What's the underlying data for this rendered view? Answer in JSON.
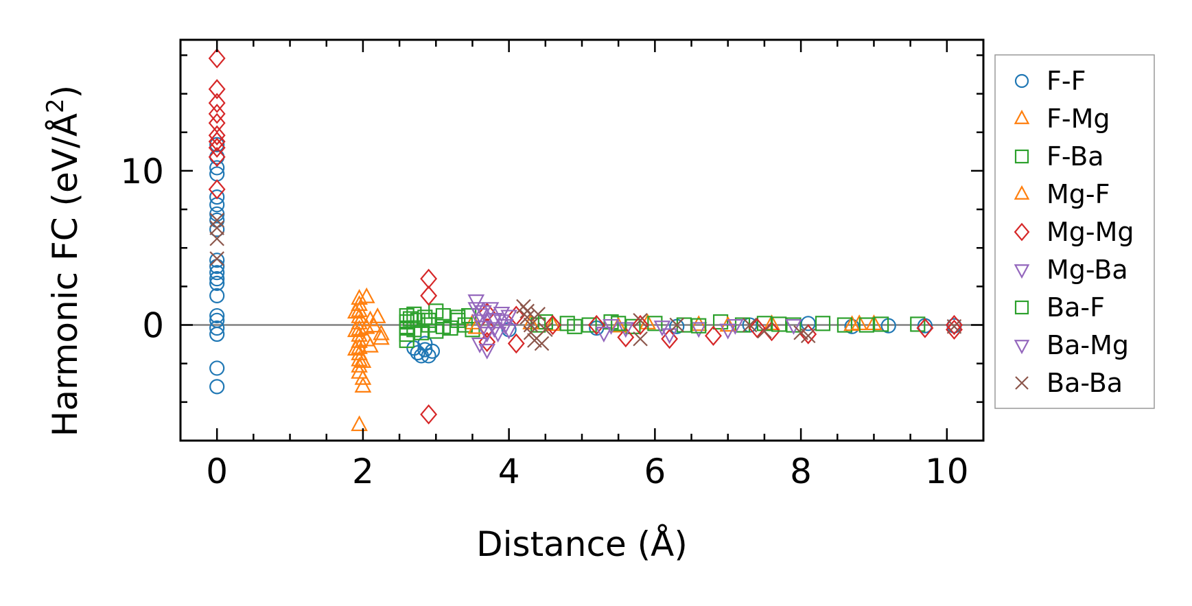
{
  "chart_data": {
    "type": "scatter",
    "title": "",
    "xlabel": "Distance (Å)",
    "ylabel_main": "Harmonic FC (eV/Å",
    "ylabel_sup": "2",
    "ylabel_close": ")",
    "xlim": [
      -0.5,
      10.5
    ],
    "ylim": [
      -7.5,
      18.5
    ],
    "xticks": [
      0,
      2,
      4,
      6,
      8,
      10
    ],
    "xtick_labels": [
      "0",
      "2",
      "4",
      "6",
      "8",
      "10"
    ],
    "yticks": [
      0,
      10
    ],
    "ytick_labels": [
      "0",
      "10"
    ],
    "reference_line_y": 0,
    "legend_position": "right-outside",
    "grid": false,
    "series": [
      {
        "name": "F-F",
        "marker": "circle",
        "color": "#1f77b4",
        "points": [
          [
            0,
            11.7
          ],
          [
            0,
            10.9
          ],
          [
            0,
            10.2
          ],
          [
            0,
            9.8
          ],
          [
            0,
            8.3
          ],
          [
            0,
            7.8
          ],
          [
            0,
            7.2
          ],
          [
            0,
            6.8
          ],
          [
            0,
            6.2
          ],
          [
            0,
            4.2
          ],
          [
            0,
            3.8
          ],
          [
            0,
            3.4
          ],
          [
            0,
            3.0
          ],
          [
            0,
            2.7
          ],
          [
            0,
            1.9
          ],
          [
            0,
            0.6
          ],
          [
            0,
            0.3
          ],
          [
            0,
            -0.2
          ],
          [
            0,
            -0.6
          ],
          [
            0,
            -2.8
          ],
          [
            0,
            -4.0
          ],
          [
            2.75,
            -1.8
          ],
          [
            2.8,
            -2.0
          ],
          [
            2.85,
            -1.6
          ],
          [
            2.9,
            -2.0
          ],
          [
            2.95,
            -1.7
          ],
          [
            2.7,
            -1.5
          ],
          [
            2.85,
            -1.2
          ],
          [
            4.0,
            -0.3
          ],
          [
            5.2,
            -0.2
          ],
          [
            6.3,
            -0.1
          ],
          [
            7.3,
            0.0
          ],
          [
            8.1,
            0.1
          ],
          [
            8.7,
            -0.1
          ],
          [
            9.2,
            -0.05
          ],
          [
            9.7,
            -0.05
          ],
          [
            10.1,
            -0.05
          ]
        ]
      },
      {
        "name": "F-Mg",
        "marker": "triangle-up",
        "color": "#ff7f0e",
        "points": [
          [
            1.95,
            1.7
          ],
          [
            1.95,
            1.3
          ],
          [
            1.95,
            0.9
          ],
          [
            1.95,
            0.5
          ],
          [
            1.95,
            0.1
          ],
          [
            1.95,
            -0.3
          ],
          [
            1.95,
            -0.7
          ],
          [
            1.95,
            -1.1
          ],
          [
            1.95,
            -1.5
          ],
          [
            1.95,
            -1.9
          ],
          [
            1.95,
            -2.3
          ],
          [
            1.95,
            -2.7
          ],
          [
            1.95,
            -3.1
          ],
          [
            1.95,
            -6.5
          ],
          [
            2.0,
            -4.0
          ],
          [
            2.0,
            -3.5
          ],
          [
            2.05,
            1.8
          ],
          [
            2.05,
            -0.2
          ],
          [
            2.05,
            -1.0
          ],
          [
            2.1,
            0.3
          ],
          [
            2.1,
            -1.4
          ],
          [
            2.2,
            0.5
          ],
          [
            2.25,
            -0.6
          ],
          [
            2.25,
            -0.9
          ],
          [
            3.5,
            0.1
          ],
          [
            4.6,
            0.0
          ],
          [
            5.9,
            0.1
          ],
          [
            6.6,
            0.0
          ],
          [
            7.6,
            0.05
          ],
          [
            8.7,
            0.0
          ],
          [
            9.0,
            0.05
          ]
        ]
      },
      {
        "name": "F-Ba",
        "marker": "square",
        "color": "#2ca02c",
        "points": [
          [
            2.6,
            0.6
          ],
          [
            2.6,
            0.2
          ],
          [
            2.6,
            -0.2
          ],
          [
            2.6,
            -0.6
          ],
          [
            2.6,
            -1.0
          ],
          [
            2.7,
            0.7
          ],
          [
            2.75,
            0.3
          ],
          [
            2.8,
            -0.5
          ],
          [
            2.85,
            0.5
          ],
          [
            2.9,
            0.0
          ],
          [
            3.0,
            0.9
          ],
          [
            3.0,
            -0.4
          ],
          [
            3.1,
            0.6
          ],
          [
            3.2,
            -0.2
          ],
          [
            3.3,
            0.3
          ],
          [
            3.4,
            0.0
          ],
          [
            3.45,
            0.6
          ],
          [
            3.5,
            -0.3
          ],
          [
            4.5,
            0.2
          ],
          [
            4.8,
            0.1
          ],
          [
            5.1,
            0.0
          ],
          [
            5.4,
            0.2
          ],
          [
            5.7,
            -0.1
          ],
          [
            6.0,
            0.1
          ],
          [
            6.4,
            0.0
          ],
          [
            6.9,
            0.2
          ],
          [
            7.2,
            0.0
          ],
          [
            7.5,
            0.1
          ],
          [
            7.9,
            0.0
          ],
          [
            8.3,
            0.1
          ],
          [
            8.6,
            0.0
          ],
          [
            9.1,
            0.05
          ],
          [
            9.6,
            0.05
          ]
        ]
      },
      {
        "name": "Mg-F",
        "marker": "triangle-up",
        "color": "#ff7f0e",
        "points": [
          [
            1.9,
            0.8
          ],
          [
            1.9,
            -0.4
          ],
          [
            1.9,
            -1.6
          ],
          [
            2.0,
            -2.4
          ],
          [
            2.15,
            -0.1
          ],
          [
            3.55,
            -0.2
          ],
          [
            4.3,
            0.1
          ],
          [
            5.5,
            -0.1
          ],
          [
            7.0,
            -0.05
          ],
          [
            8.8,
            0.05
          ]
        ]
      },
      {
        "name": "Mg-Mg",
        "marker": "diamond",
        "color": "#d62728",
        "points": [
          [
            0,
            17.3
          ],
          [
            0,
            15.3
          ],
          [
            0,
            14.4
          ],
          [
            0,
            13.7
          ],
          [
            0,
            13.1
          ],
          [
            0,
            12.3
          ],
          [
            0,
            11.9
          ],
          [
            0,
            11.5
          ],
          [
            0,
            10.9
          ],
          [
            0,
            8.8
          ],
          [
            2.9,
            3.0
          ],
          [
            2.9,
            1.9
          ],
          [
            2.9,
            -5.8
          ],
          [
            3.7,
            0.8
          ],
          [
            3.7,
            -0.2
          ],
          [
            3.7,
            -1.1
          ],
          [
            4.1,
            0.6
          ],
          [
            4.1,
            -1.2
          ],
          [
            4.6,
            0.0
          ],
          [
            5.2,
            0.0
          ],
          [
            5.6,
            -0.8
          ],
          [
            5.8,
            0.0
          ],
          [
            6.2,
            -0.9
          ],
          [
            6.8,
            -0.7
          ],
          [
            7.4,
            -0.2
          ],
          [
            7.6,
            -0.4
          ],
          [
            8.1,
            -0.6
          ],
          [
            9.7,
            -0.2
          ],
          [
            10.1,
            -0.3
          ],
          [
            10.1,
            0.0
          ]
        ]
      },
      {
        "name": "Mg-Ba",
        "marker": "triangle-down",
        "color": "#9467bd",
        "points": [
          [
            3.55,
            1.6
          ],
          [
            3.55,
            1.1
          ],
          [
            3.6,
            0.7
          ],
          [
            3.6,
            0.3
          ],
          [
            3.65,
            -0.1
          ],
          [
            3.7,
            -0.5
          ],
          [
            3.7,
            -1.6
          ],
          [
            3.75,
            1.1
          ],
          [
            3.8,
            0.4
          ],
          [
            3.85,
            -0.5
          ],
          [
            3.9,
            0.8
          ],
          [
            3.95,
            0.0
          ],
          [
            4.0,
            0.6
          ],
          [
            4.0,
            -0.3
          ],
          [
            5.3,
            -0.5
          ],
          [
            5.6,
            -0.2
          ],
          [
            6.2,
            -0.6
          ],
          [
            6.6,
            -0.2
          ],
          [
            7.0,
            -0.3
          ]
        ]
      },
      {
        "name": "Ba-F",
        "marker": "square",
        "color": "#2ca02c",
        "points": [
          [
            2.65,
            0.4
          ],
          [
            2.7,
            -0.3
          ],
          [
            2.9,
            0.3
          ],
          [
            3.1,
            -0.1
          ],
          [
            3.3,
            0.5
          ],
          [
            4.4,
            0.0
          ],
          [
            4.9,
            -0.1
          ],
          [
            5.5,
            0.1
          ],
          [
            6.6,
            -0.05
          ],
          [
            7.7,
            0.05
          ],
          [
            8.9,
            0.0
          ]
        ]
      },
      {
        "name": "Ba-Mg",
        "marker": "triangle-down",
        "color": "#9467bd",
        "points": [
          [
            3.6,
            -1.2
          ],
          [
            3.65,
            0.9
          ],
          [
            3.8,
            -0.2
          ],
          [
            3.9,
            0.3
          ],
          [
            5.4,
            0.0
          ],
          [
            6.1,
            -0.1
          ],
          [
            7.1,
            0.0
          ],
          [
            7.9,
            0.0
          ]
        ]
      },
      {
        "name": "Ba-Ba",
        "marker": "x",
        "color": "#8c564b",
        "points": [
          [
            0,
            6.8
          ],
          [
            0,
            6.3
          ],
          [
            0,
            5.6
          ],
          [
            0,
            4.3
          ],
          [
            4.2,
            1.2
          ],
          [
            4.25,
            0.5
          ],
          [
            4.3,
            0.0
          ],
          [
            4.3,
            -0.5
          ],
          [
            4.35,
            -1.0
          ],
          [
            4.4,
            0.7
          ],
          [
            4.45,
            -1.2
          ],
          [
            4.5,
            -0.3
          ],
          [
            4.25,
            0.9
          ],
          [
            5.8,
            0.3
          ],
          [
            5.8,
            -0.9
          ],
          [
            6.3,
            0.0
          ],
          [
            7.3,
            0.0
          ],
          [
            7.5,
            -0.4
          ],
          [
            8.0,
            -0.5
          ],
          [
            8.1,
            -0.7
          ],
          [
            10.1,
            -0.1
          ]
        ]
      }
    ]
  }
}
